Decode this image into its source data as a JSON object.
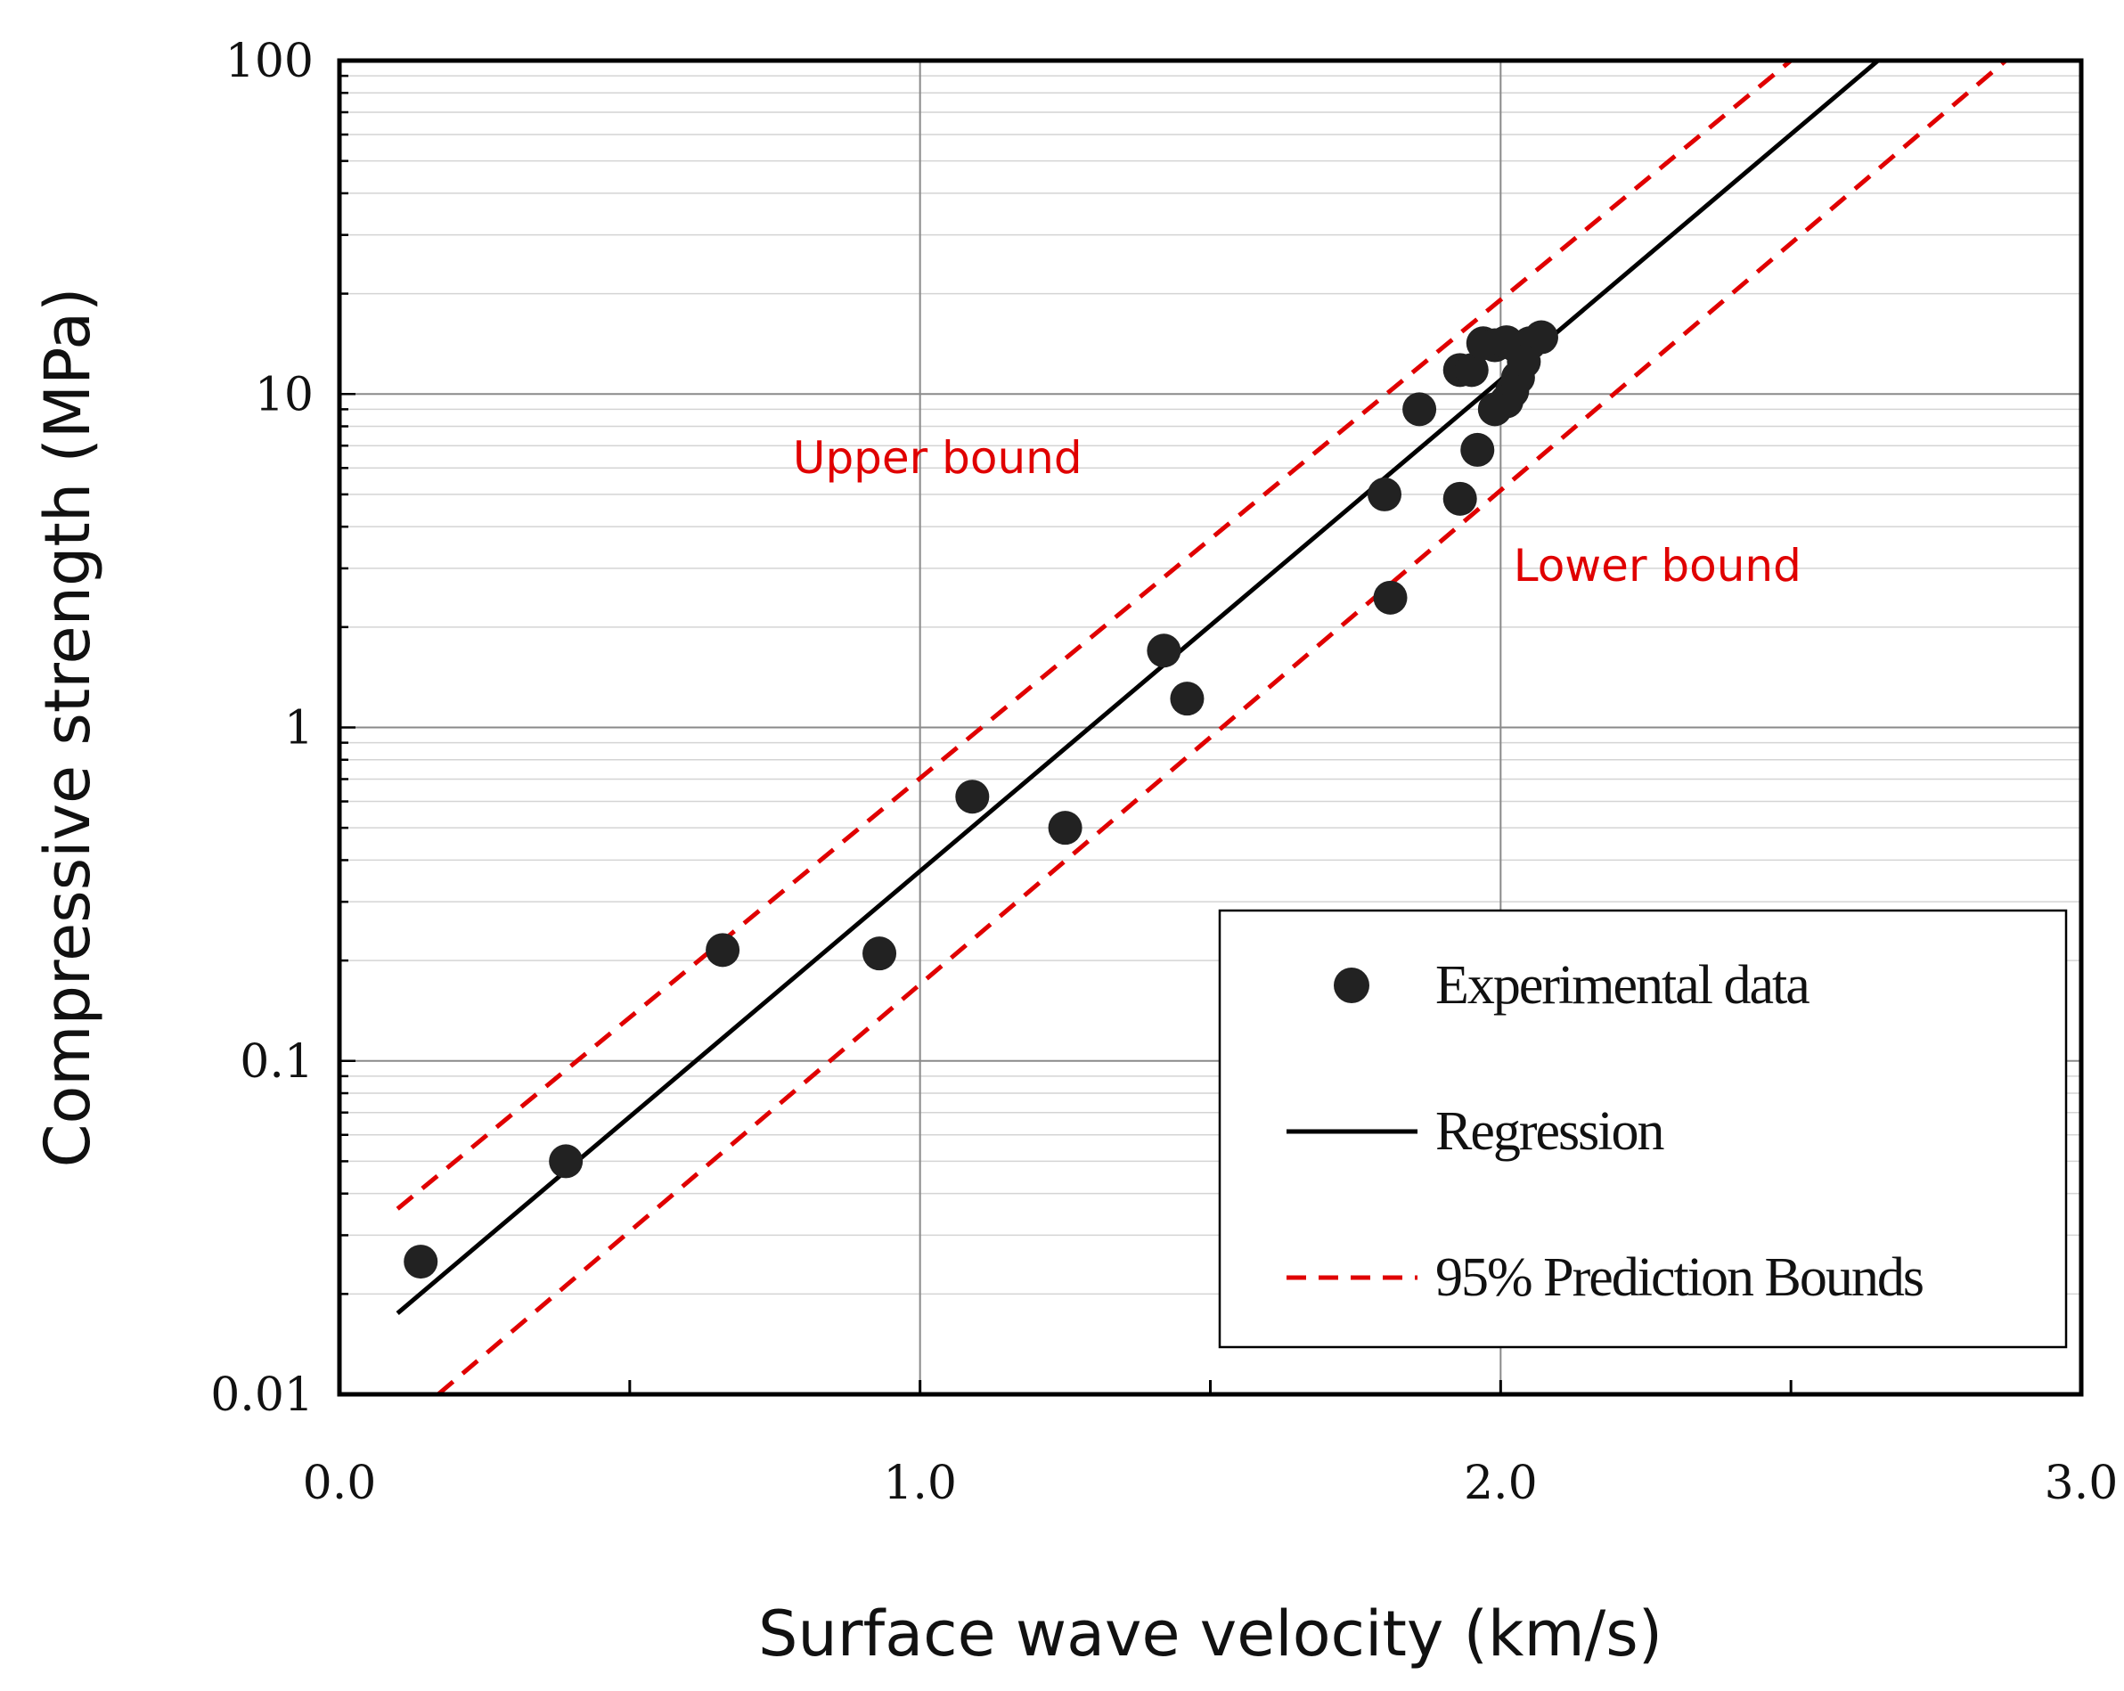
{
  "chart_data": {
    "type": "scatter",
    "xlabel": "Surface wave velocity (km/s)",
    "ylabel": "Compressive strength (MPa)",
    "xlim": [
      0.0,
      3.0
    ],
    "ylim": [
      0.01,
      100
    ],
    "yscale": "log",
    "grid": true,
    "legend_position": "bottom-right",
    "x_ticks": [
      {
        "value": 0.0,
        "label": "0.0"
      },
      {
        "value": 1.0,
        "label": "1.0"
      },
      {
        "value": 2.0,
        "label": "2.0"
      },
      {
        "value": 3.0,
        "label": "3.0"
      }
    ],
    "y_ticks": [
      {
        "value": 0.01,
        "label": "0.01"
      },
      {
        "value": 0.1,
        "label": "0.1"
      },
      {
        "value": 1,
        "label": "1"
      },
      {
        "value": 10,
        "label": "10"
      },
      {
        "value": 100,
        "label": "100"
      }
    ],
    "series": [
      {
        "name": "Experimental data",
        "kind": "points",
        "color": "#222222",
        "points": [
          [
            0.14,
            0.025
          ],
          [
            0.39,
            0.05
          ],
          [
            0.66,
            0.215
          ],
          [
            0.93,
            0.21
          ],
          [
            1.09,
            0.62
          ],
          [
            1.25,
            0.5
          ],
          [
            1.42,
            1.7
          ],
          [
            1.46,
            1.22
          ],
          [
            1.81,
            2.45
          ],
          [
            1.8,
            5.0
          ],
          [
            1.86,
            9.0
          ],
          [
            1.93,
            4.85
          ],
          [
            1.96,
            6.8
          ],
          [
            1.93,
            11.8
          ],
          [
            1.95,
            11.8
          ],
          [
            1.97,
            14.2
          ],
          [
            1.99,
            14.0
          ],
          [
            2.01,
            14.3
          ],
          [
            2.03,
            13.8
          ],
          [
            2.05,
            14.2
          ],
          [
            2.07,
            14.8
          ],
          [
            2.04,
            12.5
          ],
          [
            2.03,
            11.2
          ],
          [
            2.02,
            10.2
          ],
          [
            2.01,
            9.5
          ],
          [
            1.99,
            9.0
          ]
        ]
      },
      {
        "name": "Regression",
        "kind": "line",
        "color": "#000000",
        "points": [
          [
            0.1,
            0.0175
          ],
          [
            2.65,
            100
          ]
        ]
      },
      {
        "name": "95% Prediction Bounds",
        "kind": "dashed",
        "color": "#e00000",
        "lines": [
          [
            [
              0.1,
              0.036
            ],
            [
              2.5,
              100
            ]
          ],
          [
            [
              0.17,
              0.01
            ],
            [
              2.87,
              100
            ]
          ]
        ]
      }
    ],
    "annotations": [
      {
        "text": "Upper bound",
        "x": 1.03,
        "y": 5.8
      },
      {
        "text": "Lower bound",
        "x": 2.27,
        "y": 2.75
      }
    ]
  }
}
